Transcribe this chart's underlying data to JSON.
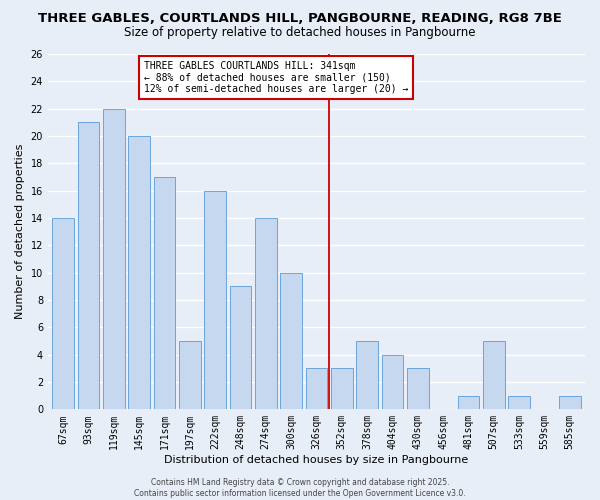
{
  "title": "THREE GABLES, COURTLANDS HILL, PANGBOURNE, READING, RG8 7BE",
  "subtitle": "Size of property relative to detached houses in Pangbourne",
  "xlabel": "Distribution of detached houses by size in Pangbourne",
  "ylabel": "Number of detached properties",
  "categories": [
    "67sqm",
    "93sqm",
    "119sqm",
    "145sqm",
    "171sqm",
    "197sqm",
    "222sqm",
    "248sqm",
    "274sqm",
    "300sqm",
    "326sqm",
    "352sqm",
    "378sqm",
    "404sqm",
    "430sqm",
    "456sqm",
    "481sqm",
    "507sqm",
    "533sqm",
    "559sqm",
    "585sqm"
  ],
  "values": [
    14,
    21,
    22,
    20,
    17,
    5,
    16,
    9,
    14,
    10,
    3,
    3,
    5,
    4,
    3,
    0,
    1,
    5,
    1,
    0,
    1
  ],
  "bar_color": "#c5d8f0",
  "bar_edge_color": "#5b9bd5",
  "background_color": "#e8eef8",
  "grid_color": "#ffffff",
  "red_line_x": 10.5,
  "annotation_text": "THREE GABLES COURTLANDS HILL: 341sqm\n← 88% of detached houses are smaller (150)\n12% of semi-detached houses are larger (20) →",
  "annotation_box_color": "#ffffff",
  "annotation_border_color": "#cc0000",
  "footer_text": "Contains HM Land Registry data © Crown copyright and database right 2025.\nContains public sector information licensed under the Open Government Licence v3.0.",
  "ylim": [
    0,
    26
  ],
  "yticks": [
    0,
    2,
    4,
    6,
    8,
    10,
    12,
    14,
    16,
    18,
    20,
    22,
    24,
    26
  ],
  "title_fontsize": 9.5,
  "subtitle_fontsize": 8.5,
  "tick_fontsize": 7,
  "label_fontsize": 8,
  "annotation_fontsize": 7,
  "footer_fontsize": 5.5
}
